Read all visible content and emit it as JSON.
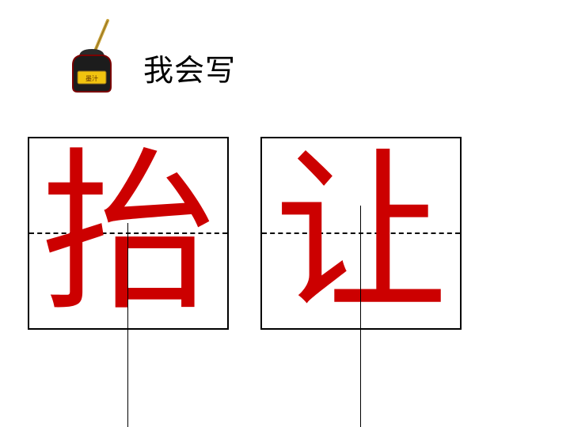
{
  "heading": {
    "text": "我会写"
  },
  "ink_bottle": {
    "label": "墨汁",
    "icon": "ink-bottle-icon"
  },
  "characters": [
    {
      "char": "抬",
      "color": "#cc0000"
    },
    {
      "char": "让",
      "color": "#cc0000"
    }
  ]
}
